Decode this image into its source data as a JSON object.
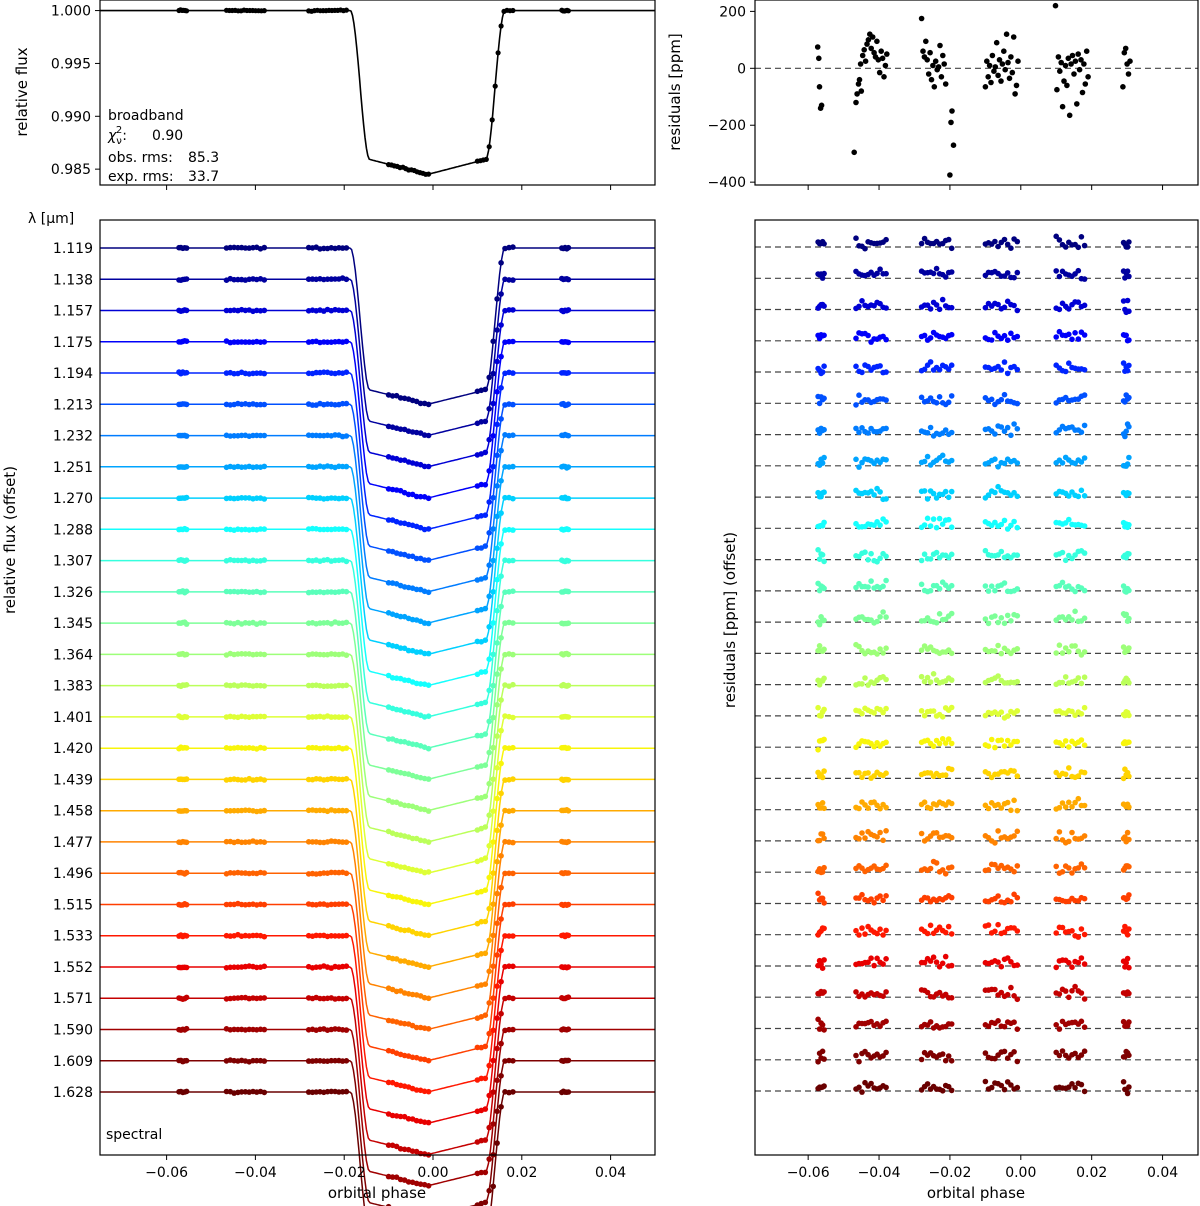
{
  "chart_data": [
    {
      "panel": "broadband-lightcurve",
      "type": "line",
      "ylabel": "relative flux",
      "xlabel": "",
      "xlim": [
        -0.075,
        0.05
      ],
      "ylim": [
        0.9835,
        1.001
      ],
      "yticks": [
        0.985,
        0.99,
        0.995,
        1.0
      ],
      "ytick_labels": [
        "0.985",
        "0.990",
        "0.995",
        "1.000"
      ],
      "annotation": {
        "title": "broadband",
        "chi_label": "χ",
        "chi_sub": "ν",
        "chi_sup": "2",
        "chi_value": "0.90",
        "obs_label": "obs. rms:",
        "obs_value": "85.3",
        "exp_label": "exp. rms:",
        "exp_value": "33.7"
      },
      "model": {
        "depth": 0.0155,
        "ingress_start": -0.0186,
        "ingress_end": -0.0143,
        "egress_start": 0.0119,
        "egress_end": 0.0162,
        "center": -0.0012
      },
      "orbits": [
        {
          "x0": -0.0572,
          "x1": -0.0555
        },
        {
          "x0": -0.0465,
          "x1": -0.038
        },
        {
          "x0": -0.028,
          "x1": -0.0195
        },
        {
          "x0": -0.01,
          "x1": -0.001
        },
        {
          "x0": 0.01,
          "x1": 0.018
        },
        {
          "x0": 0.029,
          "x1": 0.0305
        }
      ]
    },
    {
      "panel": "broadband-residuals",
      "type": "scatter",
      "ylabel": "residuals [ppm]",
      "xlim": [
        -0.075,
        0.05
      ],
      "ylim": [
        -410,
        240
      ],
      "yticks": [
        -400,
        -200,
        0,
        200
      ],
      "ytick_labels": [
        "−400",
        "−200",
        "0",
        "200"
      ],
      "zero_line": 0,
      "points": [
        [
          -0.0573,
          75
        ],
        [
          -0.057,
          35
        ],
        [
          -0.0568,
          -65
        ],
        [
          -0.0565,
          -140
        ],
        [
          -0.0562,
          -130
        ],
        [
          -0.047,
          -295
        ],
        [
          -0.0465,
          -120
        ],
        [
          -0.0462,
          -90
        ],
        [
          -0.0458,
          -55
        ],
        [
          -0.0455,
          -40
        ],
        [
          -0.0452,
          15
        ],
        [
          -0.045,
          -80
        ],
        [
          -0.0446,
          45
        ],
        [
          -0.0442,
          65
        ],
        [
          -0.0438,
          25
        ],
        [
          -0.0434,
          85
        ],
        [
          -0.043,
          100
        ],
        [
          -0.0426,
          120
        ],
        [
          -0.0422,
          70
        ],
        [
          -0.0418,
          110
        ],
        [
          -0.0414,
          55
        ],
        [
          -0.041,
          40
        ],
        [
          -0.0406,
          95
        ],
        [
          -0.0402,
          30
        ],
        [
          -0.0398,
          -15
        ],
        [
          -0.0394,
          60
        ],
        [
          -0.039,
          35
        ],
        [
          -0.0386,
          -30
        ],
        [
          -0.0382,
          10
        ],
        [
          -0.0378,
          50
        ],
        [
          -0.028,
          175
        ],
        [
          -0.0276,
          60
        ],
        [
          -0.0272,
          40
        ],
        [
          -0.0268,
          95
        ],
        [
          -0.0264,
          30
        ],
        [
          -0.026,
          -20
        ],
        [
          -0.0256,
          55
        ],
        [
          -0.0252,
          -40
        ],
        [
          -0.0248,
          10
        ],
        [
          -0.0244,
          -65
        ],
        [
          -0.024,
          25
        ],
        [
          -0.0236,
          -5
        ],
        [
          -0.0232,
          5
        ],
        [
          -0.0228,
          80
        ],
        [
          -0.0224,
          -30
        ],
        [
          -0.022,
          45
        ],
        [
          -0.0216,
          15
        ],
        [
          -0.0212,
          -55
        ],
        [
          -0.02,
          -375
        ],
        [
          -0.0197,
          -190
        ],
        [
          -0.0194,
          -150
        ],
        [
          -0.019,
          -270
        ],
        [
          -0.01,
          -65
        ],
        [
          -0.0096,
          25
        ],
        [
          -0.0092,
          -30
        ],
        [
          -0.0088,
          10
        ],
        [
          -0.0084,
          -50
        ],
        [
          -0.008,
          45
        ],
        [
          -0.0076,
          -10
        ],
        [
          -0.0072,
          5
        ],
        [
          -0.0068,
          90
        ],
        [
          -0.0064,
          -25
        ],
        [
          -0.006,
          30
        ],
        [
          -0.0056,
          -45
        ],
        [
          -0.0052,
          15
        ],
        [
          -0.0048,
          60
        ],
        [
          -0.0044,
          -5
        ],
        [
          -0.004,
          120
        ],
        [
          -0.0036,
          20
        ],
        [
          -0.0032,
          -35
        ],
        [
          -0.0028,
          40
        ],
        [
          -0.0024,
          -15
        ],
        [
          -0.002,
          110
        ],
        [
          -0.0016,
          -90
        ],
        [
          -0.0012,
          -60
        ],
        [
          -0.0008,
          25
        ],
        [
          0.0098,
          220
        ],
        [
          0.0102,
          -75
        ],
        [
          0.0106,
          40
        ],
        [
          0.011,
          -10
        ],
        [
          0.0114,
          20
        ],
        [
          0.0118,
          -135
        ],
        [
          0.0122,
          -45
        ],
        [
          0.0126,
          10
        ],
        [
          0.013,
          -60
        ],
        [
          0.0134,
          35
        ],
        [
          0.0138,
          -165
        ],
        [
          0.0142,
          15
        ],
        [
          0.0146,
          45
        ],
        [
          0.015,
          -20
        ],
        [
          0.0154,
          25
        ],
        [
          0.0158,
          -125
        ],
        [
          0.0162,
          50
        ],
        [
          0.0166,
          -5
        ],
        [
          0.017,
          30
        ],
        [
          0.0174,
          -85
        ],
        [
          0.0178,
          15
        ],
        [
          0.0182,
          -55
        ],
        [
          0.0186,
          60
        ],
        [
          0.019,
          -30
        ],
        [
          0.0288,
          -65
        ],
        [
          0.0292,
          55
        ],
        [
          0.0296,
          70
        ],
        [
          0.03,
          15
        ],
        [
          0.0304,
          -20
        ],
        [
          0.0308,
          25
        ]
      ]
    },
    {
      "panel": "spectral-lightcurves",
      "type": "line",
      "ylabel": "relative flux (offset)",
      "xlabel": "orbital phase",
      "wavelength_header": "λ [μm]",
      "corner_label": "spectral",
      "xlim": [
        -0.075,
        0.05
      ],
      "xticks": [
        -0.06,
        -0.04,
        -0.02,
        0.0,
        0.02,
        0.04
      ],
      "xtick_labels": [
        "−0.06",
        "−0.04",
        "−0.02",
        "0.00",
        "0.02",
        "0.04"
      ],
      "wavelengths": [
        "1.119",
        "1.138",
        "1.157",
        "1.175",
        "1.194",
        "1.213",
        "1.232",
        "1.251",
        "1.270",
        "1.288",
        "1.307",
        "1.326",
        "1.345",
        "1.364",
        "1.383",
        "1.401",
        "1.420",
        "1.439",
        "1.458",
        "1.477",
        "1.496",
        "1.515",
        "1.533",
        "1.552",
        "1.571",
        "1.590",
        "1.609",
        "1.628"
      ],
      "colors": [
        "#00007f",
        "#00009f",
        "#0000d4",
        "#0000fa",
        "#0024ff",
        "#0050ff",
        "#007cff",
        "#00a4ff",
        "#00d0ff",
        "#14fffe",
        "#36ffde",
        "#5affbb",
        "#7dff98",
        "#9dff79",
        "#bbff5a",
        "#deff36",
        "#f8f50a",
        "#ffd300",
        "#ffaa00",
        "#ff8300",
        "#ff6200",
        "#ff3f00",
        "#ff1800",
        "#e80000",
        "#c40000",
        "#a00000",
        "#7f0000",
        "#6a0000"
      ],
      "depth_offset": 0.0155,
      "row_spacing": 0.0031
    },
    {
      "panel": "spectral-residuals",
      "type": "scatter",
      "ylabel": "residuals [ppm] (offset)",
      "xlabel": "orbital phase",
      "xlim": [
        -0.075,
        0.05
      ],
      "xticks": [
        -0.06,
        -0.04,
        -0.02,
        0.0,
        0.02,
        0.04
      ],
      "xtick_labels": [
        "−0.06",
        "−0.04",
        "−0.02",
        "0.00",
        "0.02",
        "0.04"
      ],
      "residual_scale_ppm": 200
    }
  ]
}
